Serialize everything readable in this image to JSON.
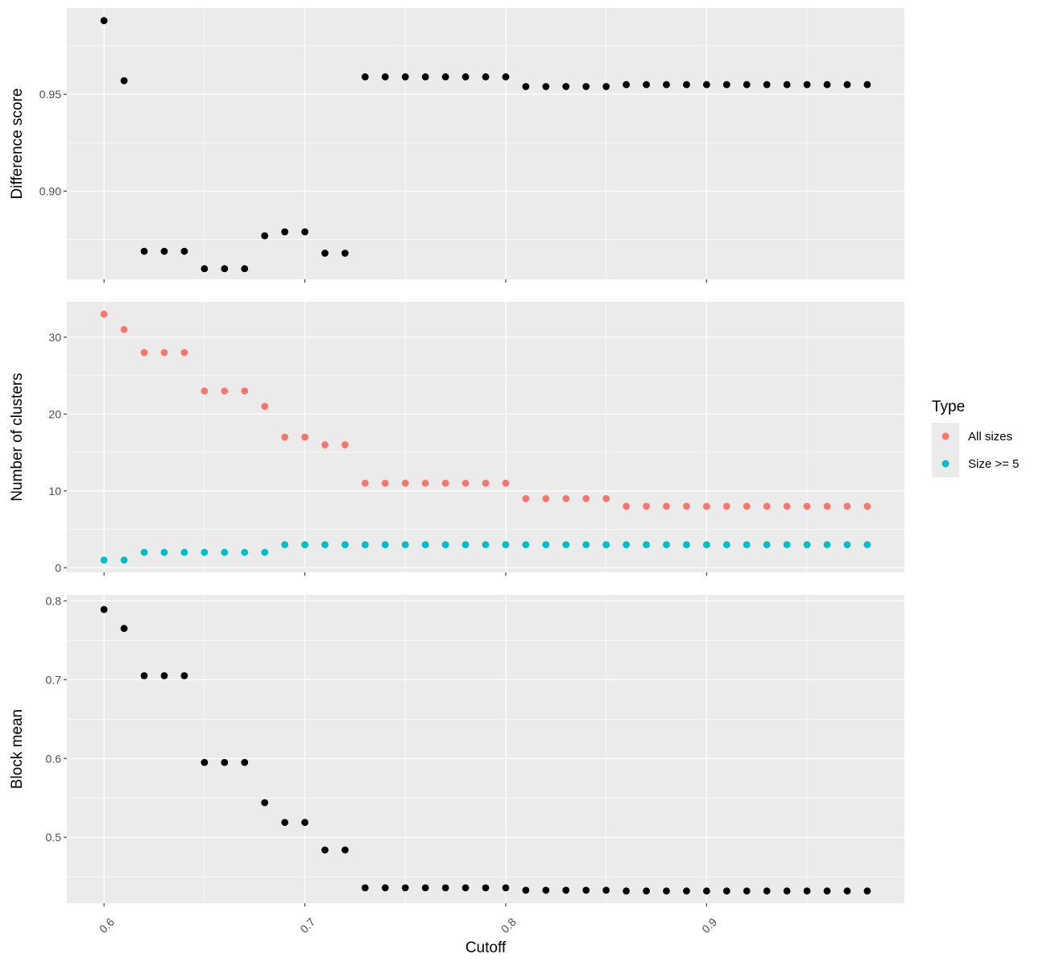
{
  "chart_data": {
    "type": "scatter",
    "xlabel": "Cutoff",
    "x_ticks": [
      0.6,
      0.7,
      0.8,
      0.9
    ],
    "x_tick_labels": [
      "0.6",
      "0.7",
      "0.8",
      "0.9"
    ],
    "xlim": [
      0.5815,
      0.9985
    ],
    "x": [
      0.6,
      0.61,
      0.62,
      0.63,
      0.64,
      0.65,
      0.66,
      0.67,
      0.68,
      0.69,
      0.7,
      0.71,
      0.72,
      0.73,
      0.74,
      0.75,
      0.76,
      0.77,
      0.78,
      0.79,
      0.8,
      0.81,
      0.82,
      0.83,
      0.84,
      0.85,
      0.86,
      0.87,
      0.88,
      0.89,
      0.9,
      0.91,
      0.92,
      0.93,
      0.94,
      0.95,
      0.96,
      0.97,
      0.98
    ],
    "background": "#ebebeb",
    "grid": true,
    "legend": {
      "title": "Type",
      "position": "right",
      "entries": [
        {
          "label": "All sizes",
          "color": "#F8766D"
        },
        {
          "label": "Size >= 5",
          "color": "#00BFC4"
        }
      ]
    },
    "panels": [
      {
        "ylabel": "Difference score",
        "ylim": [
          0.8545,
          0.9945
        ],
        "y_ticks": [
          0.9,
          0.95
        ],
        "y_tick_labels": [
          "0.90",
          "0.95"
        ],
        "series": [
          {
            "color": "#000000",
            "values": [
              0.988,
              0.957,
              0.869,
              0.869,
              0.869,
              0.86,
              0.86,
              0.86,
              0.877,
              0.879,
              0.879,
              0.868,
              0.868,
              0.959,
              0.959,
              0.959,
              0.959,
              0.959,
              0.959,
              0.959,
              0.959,
              0.954,
              0.954,
              0.954,
              0.954,
              0.954,
              0.955,
              0.955,
              0.955,
              0.955,
              0.955,
              0.955,
              0.955,
              0.955,
              0.955,
              0.955,
              0.955,
              0.955,
              0.955
            ]
          }
        ]
      },
      {
        "ylabel": "Number of clusters",
        "ylim": [
          -0.6,
          34.6
        ],
        "y_ticks": [
          0,
          10,
          20,
          30
        ],
        "y_tick_labels": [
          "0",
          "10",
          "20",
          "30"
        ],
        "series": [
          {
            "name": "All sizes",
            "color": "#F8766D",
            "values": [
              33,
              31,
              28,
              28,
              28,
              23,
              23,
              23,
              21,
              17,
              17,
              16,
              16,
              11,
              11,
              11,
              11,
              11,
              11,
              11,
              11,
              9,
              9,
              9,
              9,
              9,
              8,
              8,
              8,
              8,
              8,
              8,
              8,
              8,
              8,
              8,
              8,
              8,
              8
            ]
          },
          {
            "name": "Size >= 5",
            "color": "#00BFC4",
            "values": [
              1,
              1,
              2,
              2,
              2,
              2,
              2,
              2,
              2,
              3,
              3,
              3,
              3,
              3,
              3,
              3,
              3,
              3,
              3,
              3,
              3,
              3,
              3,
              3,
              3,
              3,
              3,
              3,
              3,
              3,
              3,
              3,
              3,
              3,
              3,
              3,
              3,
              3,
              3
            ]
          }
        ]
      },
      {
        "ylabel": "Block mean",
        "ylim": [
          0.4165,
          0.8075
        ],
        "y_ticks": [
          0.5,
          0.6,
          0.7,
          0.8
        ],
        "y_tick_labels": [
          "0.5",
          "0.6",
          "0.7",
          "0.8"
        ],
        "series": [
          {
            "color": "#000000",
            "values": [
              0.789,
              0.765,
              0.705,
              0.705,
              0.705,
              0.595,
              0.595,
              0.595,
              0.544,
              0.519,
              0.519,
              0.484,
              0.484,
              0.436,
              0.436,
              0.436,
              0.436,
              0.436,
              0.436,
              0.436,
              0.436,
              0.433,
              0.433,
              0.433,
              0.433,
              0.433,
              0.432,
              0.432,
              0.432,
              0.432,
              0.432,
              0.432,
              0.432,
              0.432,
              0.432,
              0.432,
              0.432,
              0.432,
              0.432
            ]
          }
        ]
      }
    ]
  }
}
